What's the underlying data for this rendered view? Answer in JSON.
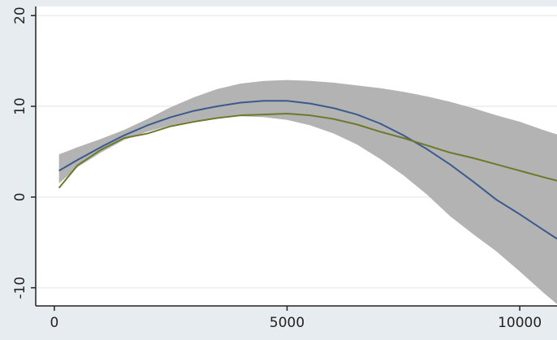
{
  "chart_data": {
    "type": "line",
    "title": "",
    "xlabel": "",
    "ylabel": "",
    "xlim": [
      -400,
      10800
    ],
    "ylim": [
      -12,
      21
    ],
    "xticks": [
      0,
      5000,
      10000
    ],
    "yticks": [
      -10,
      0,
      10,
      20
    ],
    "grid": true,
    "legend": "none",
    "x": [
      100,
      500,
      1000,
      1500,
      2000,
      2500,
      3000,
      3500,
      4000,
      4500,
      5000,
      5500,
      6000,
      6500,
      7000,
      7500,
      8000,
      8500,
      9000,
      9500,
      10000,
      10500,
      10800
    ],
    "band": {
      "color": "#b3b3b3",
      "lower": [
        1.5,
        3.3,
        4.9,
        6.3,
        7.2,
        7.9,
        8.4,
        8.7,
        8.9,
        8.8,
        8.5,
        7.9,
        7.0,
        5.8,
        4.2,
        2.4,
        0.3,
        -2.1,
        -4.1,
        -6.0,
        -8.2,
        -10.5,
        -11.8
      ],
      "upper": [
        4.7,
        5.5,
        6.4,
        7.4,
        8.6,
        9.9,
        11.0,
        11.9,
        12.5,
        12.8,
        12.9,
        12.8,
        12.6,
        12.3,
        12.0,
        11.6,
        11.1,
        10.5,
        9.8,
        9.0,
        8.3,
        7.4,
        6.9
      ]
    },
    "series": [
      {
        "color": "#3a5a8c",
        "values": [
          2.9,
          4.1,
          5.5,
          6.8,
          7.9,
          8.8,
          9.5,
          10.0,
          10.4,
          10.6,
          10.6,
          10.3,
          9.8,
          9.1,
          8.1,
          6.8,
          5.3,
          3.6,
          1.7,
          -0.3,
          -1.9,
          -3.6,
          -4.6
        ]
      },
      {
        "color": "#6b7a2a",
        "values": [
          1.0,
          3.5,
          5.2,
          6.5,
          7.0,
          7.8,
          8.3,
          8.7,
          9.0,
          9.1,
          9.2,
          9.0,
          8.6,
          8.0,
          7.2,
          6.5,
          5.7,
          4.9,
          4.3,
          3.6,
          2.9,
          2.2,
          1.8
        ]
      }
    ]
  }
}
